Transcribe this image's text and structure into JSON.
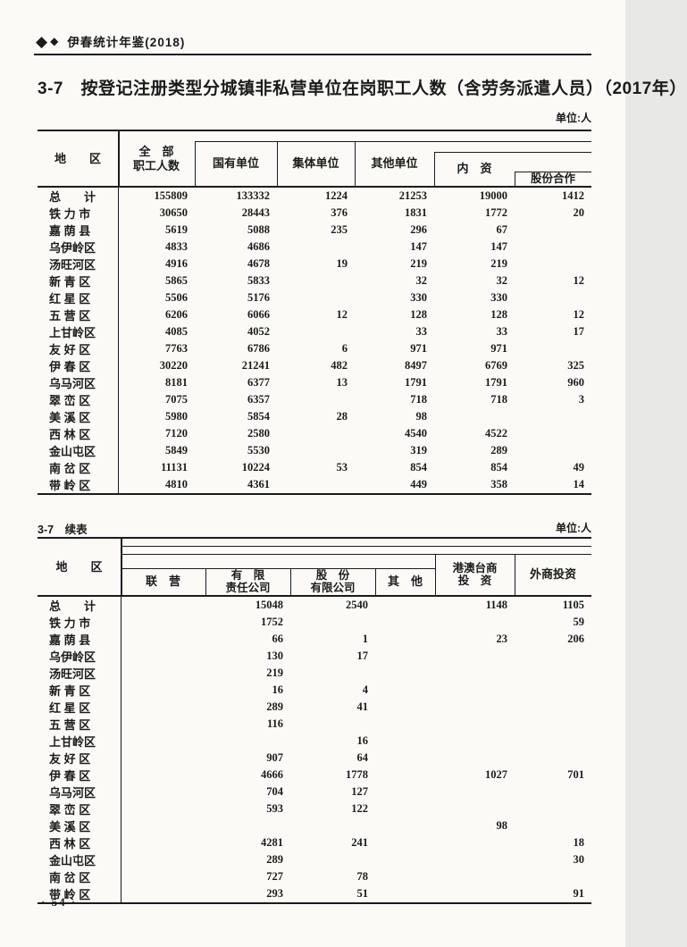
{
  "colors": {
    "ink": "#1b1b1b",
    "paper": "#fbfaf7"
  },
  "book_header": {
    "title": "伊春统计年鉴(2018)"
  },
  "doc": {
    "title": "3-7　按登记注册类型分城镇非私营单位在岗职工人数（含劳务派遣人员）（2017年）",
    "page_number": "· 54 ·"
  },
  "table1": {
    "unit_label": "单位:人",
    "headers": {
      "region": "地　　区",
      "total_l1": "全　部",
      "total_l2": "职工人数",
      "state_owned": "国有单位",
      "collective": "集体单位",
      "other_units": "其他单位",
      "domestic": "内　资",
      "share_cooperation": "股份合作"
    },
    "rows": [
      [
        "总　　计",
        "155809",
        "133332",
        "1224",
        "21253",
        "19000",
        "1412"
      ],
      [
        "铁 力 市",
        "30650",
        "28443",
        "376",
        "1831",
        "1772",
        "20"
      ],
      [
        "嘉 荫 县",
        "5619",
        "5088",
        "235",
        "296",
        "67",
        ""
      ],
      [
        "乌伊岭区",
        "4833",
        "4686",
        "",
        "147",
        "147",
        ""
      ],
      [
        "汤旺河区",
        "4916",
        "4678",
        "19",
        "219",
        "219",
        ""
      ],
      [
        "新 青 区",
        "5865",
        "5833",
        "",
        "32",
        "32",
        "12"
      ],
      [
        "红 星 区",
        "5506",
        "5176",
        "",
        "330",
        "330",
        ""
      ],
      [
        "五 营 区",
        "6206",
        "6066",
        "12",
        "128",
        "128",
        "12"
      ],
      [
        "上甘岭区",
        "4085",
        "4052",
        "",
        "33",
        "33",
        "17"
      ],
      [
        "友 好 区",
        "7763",
        "6786",
        "6",
        "971",
        "971",
        ""
      ],
      [
        "伊 春 区",
        "30220",
        "21241",
        "482",
        "8497",
        "6769",
        "325"
      ],
      [
        "乌马河区",
        "8181",
        "6377",
        "13",
        "1791",
        "1791",
        "960"
      ],
      [
        "翠 峦 区",
        "7075",
        "6357",
        "",
        "718",
        "718",
        "3"
      ],
      [
        "美 溪 区",
        "5980",
        "5854",
        "28",
        "98",
        "",
        ""
      ],
      [
        "西 林 区",
        "7120",
        "2580",
        "",
        "4540",
        "4522",
        ""
      ],
      [
        "金山屯区",
        "5849",
        "5530",
        "",
        "319",
        "289",
        ""
      ],
      [
        "南 岔 区",
        "11131",
        "10224",
        "53",
        "854",
        "854",
        "49"
      ],
      [
        "带 岭 区",
        "4810",
        "4361",
        "",
        "449",
        "358",
        "14"
      ]
    ]
  },
  "table2": {
    "caption": "3-7　续表",
    "unit_label": "单位:人",
    "headers": {
      "region": "地　　区",
      "joint": "联　营",
      "limited_l1": "有　限",
      "limited_l2": "责任公司",
      "share_l1": "股　份",
      "share_l2": "有限公司",
      "other": "其　他",
      "hmt_l1": "港澳台商",
      "hmt_l2": "投　资",
      "foreign": "外商投资"
    },
    "rows": [
      [
        "总　　计",
        "",
        "15048",
        "2540",
        "",
        "1148",
        "1105"
      ],
      [
        "铁 力 市",
        "",
        "1752",
        "",
        "",
        "",
        "59"
      ],
      [
        "嘉 荫 县",
        "",
        "66",
        "1",
        "",
        "23",
        "206"
      ],
      [
        "乌伊岭区",
        "",
        "130",
        "17",
        "",
        "",
        ""
      ],
      [
        "汤旺河区",
        "",
        "219",
        "",
        "",
        "",
        ""
      ],
      [
        "新 青 区",
        "",
        "16",
        "4",
        "",
        "",
        ""
      ],
      [
        "红 星 区",
        "",
        "289",
        "41",
        "",
        "",
        ""
      ],
      [
        "五 营 区",
        "",
        "116",
        "",
        "",
        "",
        ""
      ],
      [
        "上甘岭区",
        "",
        "",
        "16",
        "",
        "",
        ""
      ],
      [
        "友 好 区",
        "",
        "907",
        "64",
        "",
        "",
        ""
      ],
      [
        "伊 春 区",
        "",
        "4666",
        "1778",
        "",
        "1027",
        "701"
      ],
      [
        "乌马河区",
        "",
        "704",
        "127",
        "",
        "",
        ""
      ],
      [
        "翠 峦 区",
        "",
        "593",
        "122",
        "",
        "",
        ""
      ],
      [
        "美 溪 区",
        "",
        "",
        "",
        "",
        "98",
        ""
      ],
      [
        "西 林 区",
        "",
        "4281",
        "241",
        "",
        "",
        "18"
      ],
      [
        "金山屯区",
        "",
        "289",
        "",
        "",
        "",
        "30"
      ],
      [
        "南 岔 区",
        "",
        "727",
        "78",
        "",
        "",
        ""
      ],
      [
        "带 岭 区",
        "",
        "293",
        "51",
        "",
        "",
        "91"
      ]
    ]
  }
}
